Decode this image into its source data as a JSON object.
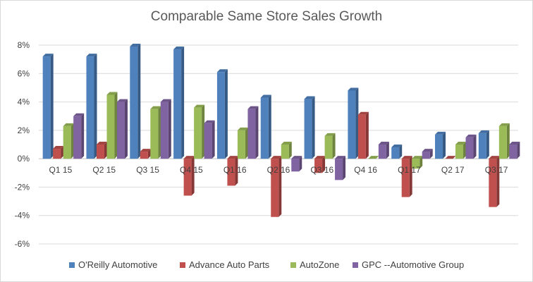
{
  "chart_data": {
    "type": "bar",
    "title": "Comparable Same Store Sales Growth",
    "categories": [
      "Q1 15",
      "Q2 15",
      "Q3 15",
      "Q4 15",
      "Q1 16",
      "Q2 16",
      "Q3 16",
      "Q4 16",
      "Q1 17",
      "Q2 17",
      "Q3 17"
    ],
    "series": [
      {
        "name": "O'Reilly Automotive",
        "color": "#4f81bd",
        "values": [
          7.2,
          7.2,
          7.9,
          7.7,
          6.1,
          4.3,
          4.2,
          4.8,
          0.8,
          1.7,
          1.8
        ]
      },
      {
        "name": "Advance Auto Parts",
        "color": "#c0504d",
        "values": [
          0.7,
          1.0,
          0.5,
          -2.6,
          -1.9,
          -4.1,
          -1.0,
          3.1,
          -2.7,
          0.0,
          -3.4
        ]
      },
      {
        "name": "AutoZone",
        "color": "#9bbb59",
        "values": [
          2.3,
          4.5,
          3.5,
          3.6,
          2.0,
          1.0,
          1.6,
          0.0,
          -0.7,
          1.0,
          2.3
        ]
      },
      {
        "name": "GPC --Automotive Group",
        "color": "#8064a2",
        "values": [
          3.0,
          4.0,
          4.0,
          2.5,
          3.5,
          -0.9,
          -1.5,
          1.0,
          0.5,
          1.5,
          1.0
        ]
      }
    ],
    "ylim": [
      -6,
      8
    ],
    "yticks": [
      -6,
      -4,
      -2,
      0,
      2,
      4,
      6,
      8
    ],
    "ytick_labels": [
      "-6%",
      "-4%",
      "-2%",
      "0%",
      "2%",
      "4%",
      "6%",
      "8%"
    ],
    "grid": true,
    "legend": "bottom"
  }
}
